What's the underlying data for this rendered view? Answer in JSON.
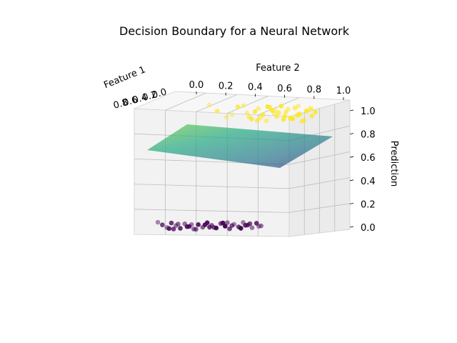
{
  "chart_data": {
    "type": "scatter",
    "title": "Decision Boundary for a Neural Network",
    "xlabel": "Feature 1",
    "ylabel": "Feature 2",
    "zlabel": "Prediction",
    "xlim": [
      0,
      1
    ],
    "ylim": [
      0,
      1
    ],
    "zlim": [
      0,
      1
    ],
    "x_ticks": [
      "0.0",
      "0.2",
      "0.4",
      "0.6",
      "0.8"
    ],
    "y_ticks": [
      "0.0",
      "0.2",
      "0.4",
      "0.6",
      "0.8",
      "1.0"
    ],
    "z_ticks": [
      "0.0",
      "0.2",
      "0.4",
      "0.6",
      "0.8",
      "1.0"
    ],
    "grid": true,
    "colormap": "viridis",
    "class_colors": {
      "class_0": "#440154",
      "class_1": "#fde725"
    },
    "surface": {
      "type": "surface",
      "corner_predictions": {
        "x0_y0": 0.72,
        "x1_y0": 0.78,
        "x0_y1": 0.68,
        "x1_y1": 0.56
      }
    },
    "series": [
      {
        "class": 1,
        "z": 1.0,
        "points": [
          [
            0.05,
            0.06
          ],
          [
            0.12,
            0.1
          ],
          [
            0.2,
            0.08
          ],
          [
            0.3,
            0.18
          ],
          [
            0.38,
            0.24
          ],
          [
            0.42,
            0.3
          ],
          [
            0.48,
            0.35
          ],
          [
            0.52,
            0.4
          ],
          [
            0.55,
            0.46
          ],
          [
            0.6,
            0.5
          ],
          [
            0.64,
            0.55
          ],
          [
            0.68,
            0.58
          ],
          [
            0.72,
            0.62
          ],
          [
            0.76,
            0.66
          ],
          [
            0.8,
            0.7
          ],
          [
            0.84,
            0.74
          ],
          [
            0.88,
            0.8
          ],
          [
            0.92,
            0.86
          ],
          [
            0.95,
            0.9
          ],
          [
            0.35,
            0.2
          ],
          [
            0.45,
            0.32
          ],
          [
            0.5,
            0.37
          ],
          [
            0.58,
            0.45
          ],
          [
            0.62,
            0.52
          ],
          [
            0.7,
            0.6
          ],
          [
            0.74,
            0.64
          ],
          [
            0.82,
            0.72
          ],
          [
            0.86,
            0.76
          ],
          [
            0.9,
            0.82
          ],
          [
            0.4,
            0.28
          ],
          [
            0.56,
            0.44
          ],
          [
            0.66,
            0.56
          ],
          [
            0.78,
            0.68
          ],
          [
            0.94,
            0.88
          ],
          [
            0.25,
            0.14
          ],
          [
            0.47,
            0.42
          ],
          [
            0.63,
            0.6
          ],
          [
            0.71,
            0.7
          ],
          [
            0.83,
            0.83
          ],
          [
            0.98,
            0.94
          ]
        ]
      },
      {
        "class": 0,
        "z": 0.0,
        "points": [
          [
            0.02,
            0.02
          ],
          [
            0.06,
            0.05
          ],
          [
            0.1,
            0.08
          ],
          [
            0.14,
            0.1
          ],
          [
            0.18,
            0.13
          ],
          [
            0.22,
            0.15
          ],
          [
            0.26,
            0.18
          ],
          [
            0.3,
            0.21
          ],
          [
            0.34,
            0.24
          ],
          [
            0.38,
            0.27
          ],
          [
            0.42,
            0.3
          ],
          [
            0.46,
            0.33
          ],
          [
            0.5,
            0.36
          ],
          [
            0.54,
            0.4
          ],
          [
            0.58,
            0.44
          ],
          [
            0.62,
            0.48
          ],
          [
            0.66,
            0.52
          ],
          [
            0.7,
            0.56
          ],
          [
            0.74,
            0.6
          ],
          [
            0.78,
            0.64
          ],
          [
            0.82,
            0.68
          ],
          [
            0.86,
            0.72
          ],
          [
            0.9,
            0.78
          ],
          [
            0.94,
            0.84
          ],
          [
            0.12,
            0.04
          ],
          [
            0.2,
            0.09
          ],
          [
            0.28,
            0.14
          ],
          [
            0.36,
            0.19
          ],
          [
            0.44,
            0.26
          ],
          [
            0.52,
            0.31
          ],
          [
            0.6,
            0.38
          ],
          [
            0.68,
            0.46
          ],
          [
            0.76,
            0.55
          ],
          [
            0.84,
            0.62
          ],
          [
            0.92,
            0.7
          ],
          [
            0.16,
            0.12
          ],
          [
            0.32,
            0.22
          ],
          [
            0.48,
            0.34
          ],
          [
            0.64,
            0.5
          ],
          [
            0.8,
            0.66
          ]
        ]
      }
    ]
  }
}
